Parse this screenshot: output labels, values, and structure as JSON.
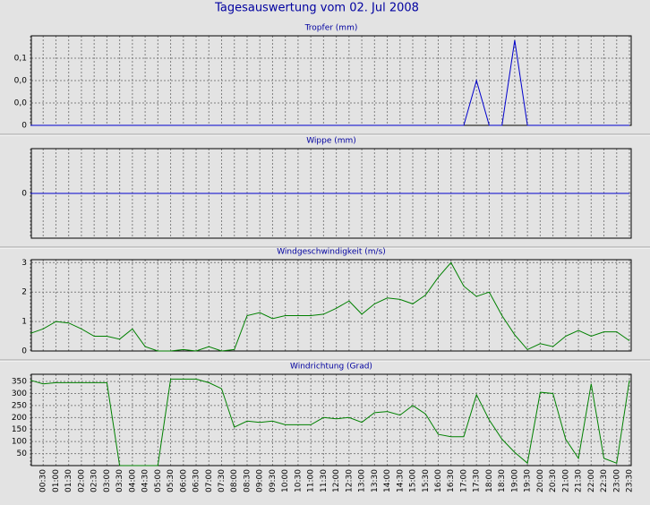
{
  "title": "Tagesauswertung vom 02. Jul 2008",
  "chart_data": [
    {
      "type": "line",
      "title": "Tropfer (mm)",
      "color": "#0000cc",
      "ylim": [
        0,
        0.08
      ],
      "yticks": [
        {
          "value": 0,
          "label": "0"
        },
        {
          "value": 0.02,
          "label": "0,0"
        },
        {
          "value": 0.04,
          "label": "0,0"
        },
        {
          "value": 0.06,
          "label": "0,1"
        }
      ],
      "values": [
        0,
        0,
        0,
        0,
        0,
        0,
        0,
        0,
        0,
        0,
        0,
        0,
        0,
        0,
        0,
        0,
        0,
        0,
        0,
        0,
        0,
        0,
        0,
        0,
        0,
        0,
        0,
        0,
        0,
        0,
        0,
        0,
        0,
        0,
        0,
        0.04,
        0,
        0,
        0.076,
        0,
        0,
        0,
        0,
        0,
        0,
        0,
        0,
        0
      ],
      "grid": true
    },
    {
      "type": "line",
      "title": "Wippe (mm)",
      "color": "#0000cc",
      "ylim": [
        -1,
        1
      ],
      "yticks": [
        0
      ],
      "values": [
        0,
        0,
        0,
        0,
        0,
        0,
        0,
        0,
        0,
        0,
        0,
        0,
        0,
        0,
        0,
        0,
        0,
        0,
        0,
        0,
        0,
        0,
        0,
        0,
        0,
        0,
        0,
        0,
        0,
        0,
        0,
        0,
        0,
        0,
        0,
        0,
        0,
        0,
        0,
        0,
        0,
        0,
        0,
        0,
        0,
        0,
        0,
        0
      ],
      "grid": true
    },
    {
      "type": "line",
      "title": "Windgeschwindigkeit (m/s)",
      "color": "#008000",
      "ylim": [
        0,
        3.1
      ],
      "yticks": [
        0,
        1,
        2,
        3
      ],
      "values": [
        0.6,
        0.75,
        1.0,
        0.95,
        0.75,
        0.5,
        0.5,
        0.4,
        0.75,
        0.15,
        0,
        0,
        0.05,
        0,
        0.15,
        0,
        0.05,
        1.2,
        1.3,
        1.1,
        1.2,
        1.2,
        1.2,
        1.25,
        1.45,
        1.7,
        1.25,
        1.6,
        1.8,
        1.75,
        1.6,
        1.9,
        2.5,
        3.0,
        2.2,
        1.85,
        2.0,
        1.2,
        0.55,
        0.05,
        0.25,
        0.15,
        0.5,
        0.7,
        0.5,
        0.65,
        0.65,
        0.35
      ],
      "grid": true
    },
    {
      "type": "line",
      "title": "Windrichtung (Grad)",
      "color": "#008000",
      "ylim": [
        0,
        380
      ],
      "yticks": [
        50,
        100,
        150,
        200,
        250,
        300,
        350
      ],
      "categories": [
        null,
        "00:30",
        "01:00",
        "01:30",
        "02:00",
        "02:30",
        "03:00",
        "03:30",
        "04:00",
        "04:30",
        "05:00",
        "05:30",
        "06:00",
        "06:30",
        "07:00",
        "07:30",
        "08:00",
        "08:30",
        "09:00",
        "09:30",
        "10:00",
        "10:30",
        "11:00",
        "11:30",
        "12:00",
        "12:30",
        "13:00",
        "13:30",
        "14:00",
        "14:30",
        "15:00",
        "15:30",
        "16:00",
        "16:30",
        "17:00",
        "17:30",
        "18:00",
        "18:30",
        "19:00",
        "19:30",
        "20:00",
        "20:30",
        "21:00",
        "21:30",
        "22:00",
        "22:30",
        "23:00",
        "23:30"
      ],
      "values": [
        355,
        340,
        345,
        345,
        345,
        345,
        345,
        0,
        0,
        0,
        0,
        360,
        360,
        360,
        345,
        320,
        160,
        185,
        180,
        185,
        170,
        170,
        170,
        200,
        195,
        200,
        180,
        220,
        225,
        210,
        250,
        215,
        130,
        120,
        120,
        295,
        190,
        110,
        55,
        10,
        305,
        300,
        110,
        30,
        340,
        30,
        10,
        355
      ],
      "grid": true
    }
  ]
}
